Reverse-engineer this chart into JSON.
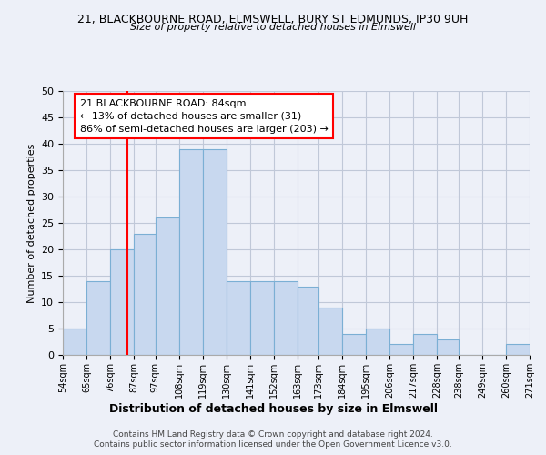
{
  "title_line1": "21, BLACKBOURNE ROAD, ELMSWELL, BURY ST EDMUNDS, IP30 9UH",
  "title_line2": "Size of property relative to detached houses in Elmswell",
  "xlabel": "Distribution of detached houses by size in Elmswell",
  "ylabel": "Number of detached properties",
  "bin_edges": [
    54,
    65,
    76,
    87,
    97,
    108,
    119,
    130,
    141,
    152,
    163,
    173,
    184,
    195,
    206,
    217,
    228,
    238,
    249,
    260,
    271
  ],
  "bin_labels": [
    "54sqm",
    "65sqm",
    "76sqm",
    "87sqm",
    "97sqm",
    "108sqm",
    "119sqm",
    "130sqm",
    "141sqm",
    "152sqm",
    "163sqm",
    "173sqm",
    "184sqm",
    "195sqm",
    "206sqm",
    "217sqm",
    "228sqm",
    "238sqm",
    "249sqm",
    "260sqm",
    "271sqm"
  ],
  "counts": [
    5,
    14,
    20,
    23,
    26,
    39,
    39,
    14,
    14,
    14,
    13,
    9,
    4,
    5,
    2,
    4,
    3,
    0,
    0,
    2
  ],
  "bar_color": "#c8d8ef",
  "bar_edge_color": "#7bafd4",
  "vline_x": 84,
  "vline_color": "red",
  "annotation_line1": "21 BLACKBOURNE ROAD: 84sqm",
  "annotation_line2": "← 13% of detached houses are smaller (31)",
  "annotation_line3": "86% of semi-detached houses are larger (203) →",
  "annotation_box_color": "white",
  "annotation_box_edge": "red",
  "ylim": [
    0,
    50
  ],
  "yticks": [
    0,
    5,
    10,
    15,
    20,
    25,
    30,
    35,
    40,
    45,
    50
  ],
  "footer_line1": "Contains HM Land Registry data © Crown copyright and database right 2024.",
  "footer_line2": "Contains public sector information licensed under the Open Government Licence v3.0.",
  "background_color": "#edf0f8",
  "plot_bg_color": "#edf0f8",
  "grid_color": "#c0c8d8"
}
